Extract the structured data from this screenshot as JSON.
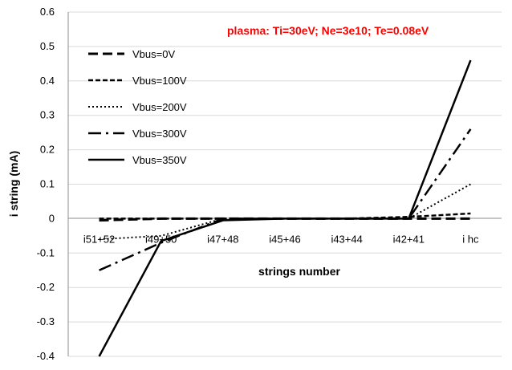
{
  "chart_data": {
    "type": "line",
    "title": "",
    "xlabel": "strings number",
    "ylabel": "i string (mA)",
    "annotation": "plasma: Ti=30eV; Ne=3e10; Te=0.08eV",
    "annotation_color": "#ff0000",
    "categories": [
      "i51+52",
      "i49+50",
      "i47+48",
      "i45+46",
      "i43+44",
      "i42+41",
      "i hc"
    ],
    "ylim": [
      -0.4,
      0.6
    ],
    "yticks": [
      "0.6",
      "0.5",
      "0.4",
      "0.3",
      "0.2",
      "0.1",
      "0",
      "-0.1",
      "-0.2",
      "-0.3",
      "-0.4"
    ],
    "ytick_values": [
      0.6,
      0.5,
      0.4,
      0.3,
      0.2,
      0.1,
      0,
      -0.1,
      -0.2,
      -0.3,
      -0.4
    ],
    "grid": "horizontal",
    "legend_position": "top-left",
    "series": [
      {
        "name": "Vbus=0V",
        "style": "longdash",
        "values": [
          -0.005,
          0.0,
          0.0,
          0.0,
          0.0,
          0.0,
          0.0
        ]
      },
      {
        "name": "Vbus=100V",
        "style": "dash",
        "values": [
          0.0,
          0.0,
          0.0,
          0.0,
          0.0,
          0.005,
          0.015
        ]
      },
      {
        "name": "Vbus=200V",
        "style": "dot",
        "values": [
          -0.06,
          -0.05,
          0.0,
          0.0,
          0.0,
          0.0,
          0.1
        ]
      },
      {
        "name": "Vbus=300V",
        "style": "dashdot",
        "values": [
          -0.15,
          -0.07,
          0.0,
          0.0,
          0.0,
          0.0,
          0.26
        ]
      },
      {
        "name": "Vbus=350V",
        "style": "solid",
        "values": [
          -0.4,
          -0.065,
          -0.005,
          0.0,
          0.0,
          0.0,
          0.46
        ]
      }
    ]
  }
}
